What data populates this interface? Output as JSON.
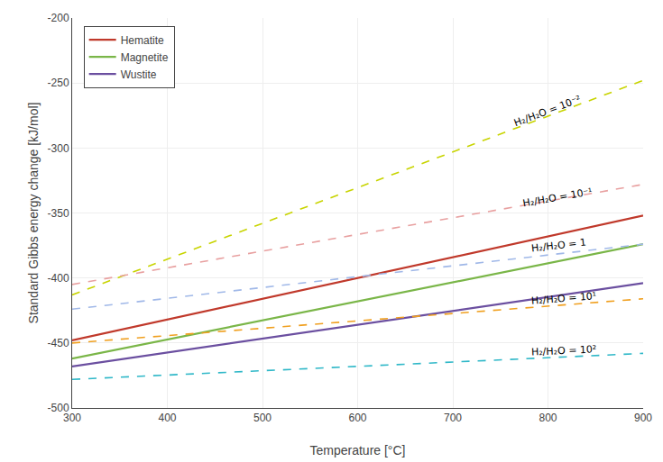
{
  "chart_data": {
    "type": "line",
    "xlabel": "Temperature [°C]",
    "ylabel": "Standard Gibbs energy change [kJ/mol]",
    "x": [
      300,
      900
    ],
    "series": [
      {
        "name": "Hematite",
        "color": "#c0392b",
        "values": [
          -448,
          -352
        ],
        "line_style": "solid"
      },
      {
        "name": "Magnetite",
        "color": "#7ab648",
        "values": [
          -462,
          -374
        ],
        "line_style": "solid"
      },
      {
        "name": "Wustite",
        "color": "#6b4fa0",
        "values": [
          -468,
          -404
        ],
        "line_style": "solid"
      },
      {
        "color": "#c8d400",
        "values": [
          -413,
          -248
        ],
        "line_style": "dashed"
      },
      {
        "color": "#e8a0a0",
        "values": [
          -405,
          -328
        ],
        "line_style": "dashed"
      },
      {
        "color": "#a0b8e8",
        "values": [
          -424,
          -374
        ],
        "line_style": "dashed"
      },
      {
        "color": "#f0a020",
        "values": [
          -450,
          -416
        ],
        "line_style": "dashed"
      },
      {
        "color": "#30b8c8",
        "values": [
          -478,
          -458
        ],
        "line_style": "dashed"
      }
    ],
    "annotations": [
      {
        "text": "H₂/H₂O = 10⁻²",
        "x": 760,
        "y": -272
      },
      {
        "text": "H₂/H₂O = 10⁻¹",
        "x": 770,
        "y": -338
      },
      {
        "text": "H₂/H₂O = 1",
        "x": 780,
        "y": -375
      },
      {
        "text": "H₂/H₂O = 10¹",
        "x": 780,
        "y": -416
      },
      {
        "text": "H₂/H₂O = 10²",
        "x": 780,
        "y": -456
      }
    ],
    "xlim": [
      300,
      900
    ],
    "xticks": [
      300,
      400,
      500,
      600,
      700,
      800,
      900
    ],
    "ylim": [
      -500,
      -200
    ],
    "yticks": [
      -500,
      -450,
      -400,
      -350,
      -300,
      -250,
      -200
    ],
    "grid": true,
    "legend": "upper left"
  }
}
